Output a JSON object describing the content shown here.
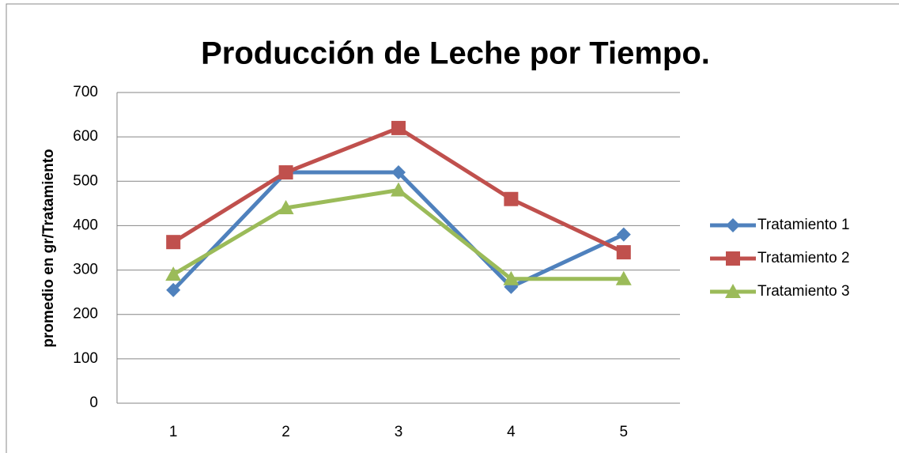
{
  "chart_data": {
    "type": "line",
    "title": "Producción de Leche por Tiempo.",
    "y_label": "promedio en gr/Tratamiento",
    "categories": [
      "1",
      "2",
      "3",
      "4",
      "5"
    ],
    "series": [
      {
        "name": "Tratamiento 1",
        "color": "#4f81bd",
        "marker": "diamond",
        "values": [
          255,
          520,
          520,
          262,
          380
        ]
      },
      {
        "name": "Tratamiento 2",
        "color": "#c0504d",
        "marker": "square",
        "values": [
          363,
          520,
          620,
          460,
          340
        ]
      },
      {
        "name": "Tratamiento 3",
        "color": "#9bbb59",
        "marker": "triangle",
        "values": [
          290,
          440,
          480,
          280,
          280
        ]
      }
    ],
    "ylim": [
      0,
      700
    ],
    "yticks": [
      0,
      100,
      200,
      300,
      400,
      500,
      600,
      700
    ],
    "grid": true,
    "legend": "right"
  }
}
